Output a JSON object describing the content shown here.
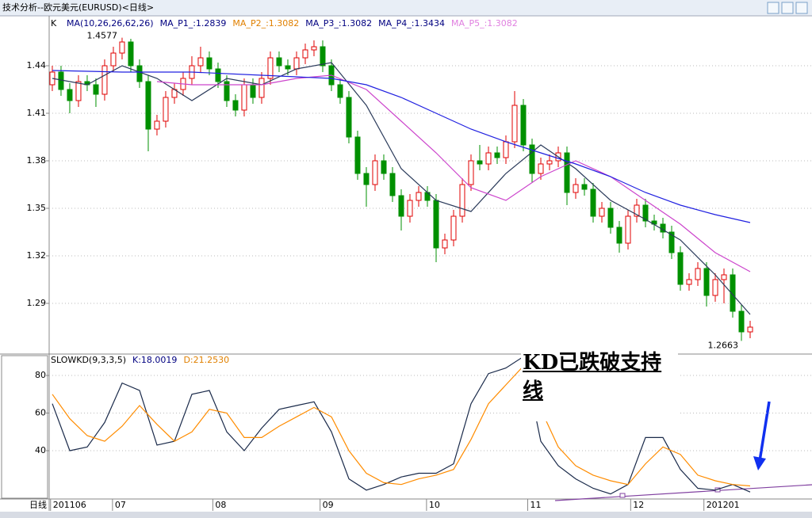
{
  "window_title": "技术分析--欧元美元(EURUSD)<日线>",
  "chart_data": [
    {
      "type": "candlestick",
      "label": "K",
      "legend": [
        {
          "text": "MA(10,26,26,62,26)",
          "color": "#000080"
        },
        {
          "text": "MA_P1_:1.2839",
          "color": "#000080"
        },
        {
          "text": "MA_P2_:1.3082",
          "color": "#e08000"
        },
        {
          "text": "MA_P3_:1.3082",
          "color": "#000080"
        },
        {
          "text": "MA_P4_:1.3434",
          "color": "#000080"
        },
        {
          "text": "MA_P5_:1.3082",
          "color": "#e080e0"
        }
      ],
      "xlim": [
        -0.36,
        87.09
      ],
      "ylim": [
        1.258,
        1.4705
      ],
      "yticks": [
        1.29,
        1.32,
        1.35,
        1.38,
        1.41,
        1.44
      ],
      "grid": true,
      "up_color": "#e00000",
      "down_color": "#009000",
      "open": [
        1.428,
        1.436,
        1.425,
        1.418,
        1.43,
        1.428,
        1.422,
        1.44,
        1.448,
        1.455,
        1.44,
        1.43,
        1.4,
        1.405,
        1.42,
        1.425,
        1.432,
        1.44,
        1.445,
        1.438,
        1.43,
        1.418,
        1.412,
        1.428,
        1.42,
        1.432,
        1.445,
        1.44,
        1.438,
        1.445,
        1.45,
        1.452,
        1.44,
        1.428,
        1.42,
        1.395,
        1.372,
        1.365,
        1.38,
        1.372,
        1.358,
        1.345,
        1.355,
        1.36,
        1.355,
        1.325,
        1.33,
        1.345,
        1.365,
        1.38,
        1.378,
        1.385,
        1.382,
        1.392,
        1.415,
        1.39,
        1.372,
        1.378,
        1.38,
        1.385,
        1.36,
        1.365,
        1.362,
        1.345,
        1.35,
        1.338,
        1.328,
        1.345,
        1.352,
        1.342,
        1.34,
        1.335,
        1.322,
        1.302,
        1.305,
        1.312,
        1.295,
        1.305,
        1.308,
        1.285,
        1.272
      ],
      "high": [
        1.44,
        1.44,
        1.429,
        1.434,
        1.434,
        1.432,
        1.444,
        1.452,
        1.4577,
        1.457,
        1.444,
        1.434,
        1.409,
        1.424,
        1.429,
        1.436,
        1.446,
        1.452,
        1.449,
        1.442,
        1.434,
        1.422,
        1.432,
        1.432,
        1.436,
        1.449,
        1.449,
        1.444,
        1.449,
        1.454,
        1.456,
        1.456,
        1.444,
        1.432,
        1.424,
        1.399,
        1.376,
        1.384,
        1.384,
        1.376,
        1.362,
        1.359,
        1.364,
        1.364,
        1.359,
        1.334,
        1.349,
        1.369,
        1.384,
        1.39,
        1.389,
        1.389,
        1.396,
        1.424,
        1.419,
        1.394,
        1.382,
        1.384,
        1.389,
        1.389,
        1.369,
        1.369,
        1.366,
        1.354,
        1.354,
        1.342,
        1.349,
        1.356,
        1.356,
        1.346,
        1.344,
        1.339,
        1.326,
        1.309,
        1.316,
        1.316,
        1.309,
        1.312,
        1.312,
        1.289,
        1.279
      ],
      "low": [
        1.424,
        1.421,
        1.41,
        1.414,
        1.424,
        1.414,
        1.418,
        1.436,
        1.444,
        1.436,
        1.426,
        1.386,
        1.396,
        1.401,
        1.416,
        1.421,
        1.428,
        1.436,
        1.434,
        1.426,
        1.414,
        1.408,
        1.408,
        1.416,
        1.416,
        1.428,
        1.436,
        1.434,
        1.434,
        1.441,
        1.446,
        1.436,
        1.424,
        1.416,
        1.391,
        1.368,
        1.351,
        1.361,
        1.368,
        1.354,
        1.336,
        1.341,
        1.351,
        1.351,
        1.316,
        1.321,
        1.326,
        1.341,
        1.361,
        1.374,
        1.374,
        1.378,
        1.378,
        1.388,
        1.386,
        1.366,
        1.368,
        1.374,
        1.376,
        1.352,
        1.356,
        1.358,
        1.341,
        1.341,
        1.334,
        1.322,
        1.324,
        1.341,
        1.338,
        1.336,
        1.331,
        1.318,
        1.298,
        1.298,
        1.301,
        1.288,
        1.291,
        1.29,
        1.281,
        1.2663,
        1.268
      ],
      "close": [
        1.436,
        1.425,
        1.418,
        1.43,
        1.428,
        1.422,
        1.44,
        1.448,
        1.455,
        1.44,
        1.43,
        1.4,
        1.405,
        1.42,
        1.425,
        1.432,
        1.44,
        1.445,
        1.438,
        1.43,
        1.418,
        1.412,
        1.428,
        1.42,
        1.432,
        1.445,
        1.44,
        1.438,
        1.445,
        1.45,
        1.452,
        1.44,
        1.428,
        1.42,
        1.395,
        1.372,
        1.365,
        1.38,
        1.372,
        1.358,
        1.345,
        1.355,
        1.36,
        1.355,
        1.325,
        1.33,
        1.345,
        1.365,
        1.38,
        1.378,
        1.385,
        1.382,
        1.392,
        1.415,
        1.39,
        1.372,
        1.378,
        1.38,
        1.385,
        1.36,
        1.365,
        1.362,
        1.345,
        1.35,
        1.338,
        1.328,
        1.345,
        1.352,
        1.342,
        1.34,
        1.335,
        1.322,
        1.302,
        1.305,
        1.312,
        1.295,
        1.305,
        1.308,
        1.285,
        1.272,
        1.275
      ],
      "lines": [
        {
          "color": "#2a3a5a",
          "x": [
            0,
            4,
            8,
            12,
            16,
            20,
            24,
            28,
            32,
            36,
            40,
            44,
            48,
            52,
            56,
            60,
            64,
            68,
            72,
            76,
            80
          ],
          "values": [
            1.432,
            1.428,
            1.44,
            1.432,
            1.418,
            1.432,
            1.428,
            1.438,
            1.442,
            1.415,
            1.375,
            1.355,
            1.348,
            1.372,
            1.39,
            1.375,
            1.355,
            1.343,
            1.33,
            1.308,
            1.283
          ]
        },
        {
          "color": "#cc44cc",
          "x": [
            12,
            16,
            20,
            24,
            28,
            32,
            36,
            40,
            44,
            48,
            52,
            56,
            60,
            64,
            68,
            72,
            76,
            80
          ],
          "values": [
            1.43,
            1.428,
            1.428,
            1.428,
            1.432,
            1.434,
            1.425,
            1.405,
            1.385,
            1.363,
            1.355,
            1.37,
            1.38,
            1.37,
            1.355,
            1.34,
            1.322,
            1.31
          ]
        },
        {
          "color": "#2020e0",
          "x": [
            0,
            8,
            16,
            24,
            32,
            36,
            40,
            44,
            48,
            52,
            56,
            60,
            64,
            68,
            72,
            76,
            80
          ],
          "values": [
            1.437,
            1.436,
            1.436,
            1.434,
            1.432,
            1.428,
            1.42,
            1.41,
            1.4,
            1.392,
            1.385,
            1.378,
            1.37,
            1.36,
            1.352,
            1.346,
            1.341
          ]
        }
      ]
    },
    {
      "type": "line",
      "legend": [
        {
          "text": "SLOWKD(9,3,3,5)",
          "color": "#000000"
        },
        {
          "text": "K:18.0019",
          "color": "#000080"
        },
        {
          "text": "D:21.2530",
          "color": "#e08000"
        }
      ],
      "x_axis_label": "日线",
      "annotation": "KD已跌破支持线",
      "xlim": [
        -0.36,
        87.09
      ],
      "ylim": [
        14.3,
        91.4
      ],
      "yticks": [
        40,
        60,
        80
      ],
      "grid": true,
      "xticks": [
        {
          "value": -0.2,
          "label": "201106"
        },
        {
          "value": 6.9,
          "label": "07"
        },
        {
          "value": 18.4,
          "label": "08"
        },
        {
          "value": 30.7,
          "label": "09"
        },
        {
          "value": 42.9,
          "label": "10"
        },
        {
          "value": 54.5,
          "label": "11"
        },
        {
          "value": 66.3,
          "label": "12"
        },
        {
          "value": 74.7,
          "label": "201201"
        }
      ],
      "x": [
        0,
        2,
        4,
        6,
        8,
        10,
        12,
        14,
        16,
        18,
        20,
        22,
        24,
        26,
        28,
        30,
        32,
        34,
        36,
        38,
        40,
        42,
        44,
        46,
        48,
        50,
        52,
        54,
        56,
        58,
        60,
        62,
        64,
        66,
        68,
        70,
        72,
        74,
        76,
        78,
        80
      ],
      "series": [
        {
          "color": "#1a2a4a",
          "values": [
            65,
            40,
            42,
            55,
            76,
            72,
            43,
            45,
            70,
            72,
            50,
            40,
            52,
            62,
            64,
            66,
            50,
            25,
            19,
            22,
            26,
            28,
            28,
            33,
            65,
            81,
            84,
            90,
            45,
            32,
            25,
            20,
            17,
            22,
            47,
            47,
            30,
            20,
            19,
            22,
            18.0019
          ]
        },
        {
          "color": "#ff8c00",
          "values": [
            70,
            57,
            48,
            45,
            53,
            64,
            54,
            45,
            50,
            62,
            60,
            47,
            47,
            53,
            58,
            63,
            58,
            40,
            28,
            23,
            22,
            25,
            27,
            30,
            46,
            65,
            75,
            85,
            62,
            42,
            32,
            27,
            24,
            22,
            33,
            42,
            38,
            27,
            24,
            22,
            21.253
          ]
        }
      ]
    }
  ]
}
